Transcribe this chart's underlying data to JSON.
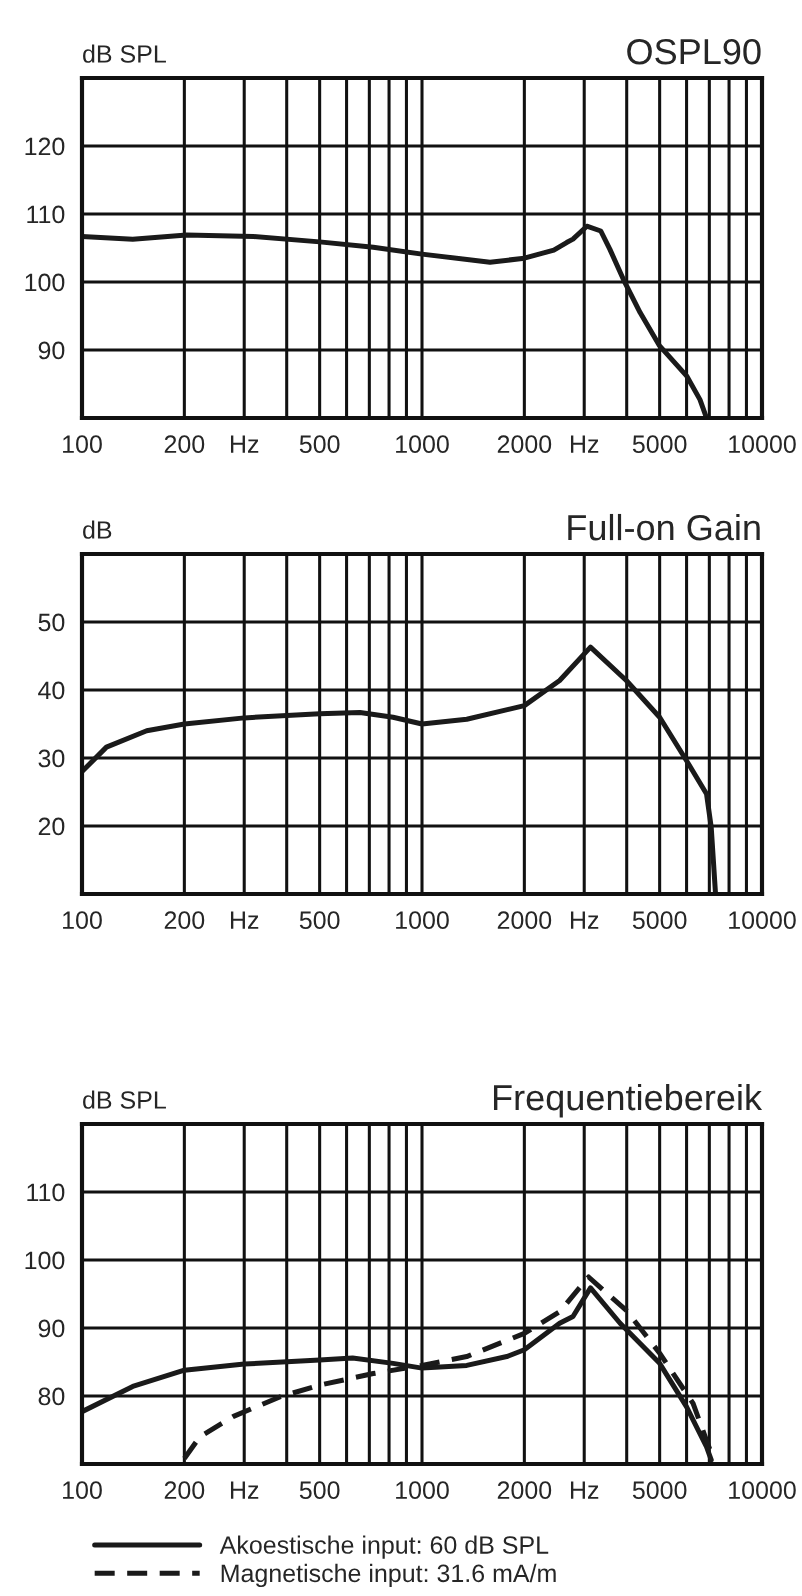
{
  "chart_data": [
    {
      "type": "line",
      "title": "OSPL90",
      "ylabel": "dB SPL",
      "log": "x",
      "grid": true,
      "xlim": [
        100,
        10000
      ],
      "ylim": [
        80,
        130
      ],
      "xticks": [
        100,
        200,
        {
          "value": 300,
          "label": "Hz"
        },
        {
          "value": 400,
          "label": null
        },
        500,
        {
          "value": 600,
          "label": null
        },
        {
          "value": 700,
          "label": null
        },
        {
          "value": 800,
          "label": null
        },
        {
          "value": 900,
          "label": null
        },
        1000,
        2000,
        {
          "value": 3000,
          "label": "Hz"
        },
        {
          "value": 4000,
          "label": null
        },
        5000,
        {
          "value": 6000,
          "label": null
        },
        {
          "value": 7000,
          "label": null
        },
        {
          "value": 8000,
          "label": null
        },
        {
          "value": 9000,
          "label": null
        },
        10000
      ],
      "yticks": [
        90,
        100,
        110,
        120
      ],
      "series": [
        {
          "color": "#1a1a1a",
          "line_style": "solid",
          "x": [
            100,
            141,
            203,
            319,
            500,
            719,
            1000,
            1585,
            2000,
            2442,
            2663,
            2780,
            3054,
            3356,
            3570,
            3910,
            4380,
            5000,
            6000,
            6570,
            6870
          ],
          "values": [
            106.7,
            106.3,
            106.9,
            106.7,
            105.9,
            105.1,
            104.1,
            102.9,
            103.5,
            104.7,
            105.8,
            106.3,
            108.2,
            107.5,
            104.8,
            100.4,
            95.5,
            90.6,
            86.2,
            82.7,
            80.0
          ]
        }
      ]
    },
    {
      "type": "line",
      "title": "Full-on Gain",
      "ylabel": "dB",
      "log": "x",
      "grid": true,
      "xlim": [
        100,
        10000
      ],
      "ylim": [
        10,
        60
      ],
      "xticks": [
        100,
        200,
        {
          "value": 300,
          "label": "Hz"
        },
        {
          "value": 400,
          "label": null
        },
        500,
        {
          "value": 600,
          "label": null
        },
        {
          "value": 700,
          "label": null
        },
        {
          "value": 800,
          "label": null
        },
        {
          "value": 900,
          "label": null
        },
        1000,
        2000,
        {
          "value": 3000,
          "label": "Hz"
        },
        {
          "value": 4000,
          "label": null
        },
        5000,
        {
          "value": 6000,
          "label": null
        },
        {
          "value": 7000,
          "label": null
        },
        {
          "value": 8000,
          "label": null
        },
        {
          "value": 9000,
          "label": null
        },
        10000
      ],
      "yticks": [
        20,
        30,
        40,
        50
      ],
      "series": [
        {
          "color": "#1a1a1a",
          "line_style": "solid",
          "x": [
            100,
            118,
            155,
            200,
            300,
            500,
            657,
            822,
            1000,
            1354,
            2000,
            2540,
            3130,
            3990,
            5000,
            6000,
            6870,
            7090,
            7300
          ],
          "values": [
            28.0,
            31.6,
            34.0,
            35.0,
            35.9,
            36.5,
            36.7,
            36.0,
            35.0,
            35.7,
            37.7,
            41.4,
            46.3,
            41.4,
            36.0,
            29.6,
            24.7,
            19.8,
            10.0
          ]
        }
      ]
    },
    {
      "type": "line",
      "title": "Frequentiebereik",
      "ylabel": "dB SPL",
      "log": "x",
      "grid": true,
      "legend": "bottom",
      "xlim": [
        100,
        10000
      ],
      "ylim": [
        70,
        120
      ],
      "xticks": [
        100,
        200,
        {
          "value": 300,
          "label": "Hz"
        },
        {
          "value": 400,
          "label": null
        },
        500,
        {
          "value": 600,
          "label": null
        },
        {
          "value": 700,
          "label": null
        },
        {
          "value": 800,
          "label": null
        },
        {
          "value": 900,
          "label": null
        },
        1000,
        2000,
        {
          "value": 3000,
          "label": "Hz"
        },
        {
          "value": 4000,
          "label": null
        },
        5000,
        {
          "value": 6000,
          "label": null
        },
        {
          "value": 7000,
          "label": null
        },
        {
          "value": 8000,
          "label": null
        },
        {
          "value": 9000,
          "label": null
        },
        10000
      ],
      "yticks": [
        80,
        90,
        100,
        110
      ],
      "series": [
        {
          "name": "Akoestische input: 60 dB SPL",
          "color": "#1a1a1a",
          "line_style": "solid",
          "x": [
            100,
            141,
            200,
            300,
            500,
            625,
            822,
            1000,
            1354,
            1776,
            2000,
            2540,
            2780,
            3130,
            3825,
            5000,
            6000,
            6870,
            7090
          ],
          "values": [
            77.7,
            81.4,
            83.8,
            84.7,
            85.3,
            85.6,
            84.8,
            84.1,
            84.5,
            85.8,
            86.8,
            90.7,
            91.7,
            95.9,
            90.7,
            84.8,
            78.4,
            72.5,
            70.6
          ]
        },
        {
          "name": "Magnetische input: 31.6 mA/m",
          "color": "#1a1a1a",
          "line_style": "dashed",
          "x": [
            200,
            222,
            279,
            383,
            500,
            719,
            1000,
            1354,
            2000,
            2540,
            3090,
            3990,
            5000,
            6270,
            7090
          ],
          "values": [
            70.8,
            74.0,
            77.0,
            79.9,
            81.6,
            83.3,
            84.5,
            85.8,
            89.2,
            92.4,
            97.5,
            92.6,
            86.3,
            78.9,
            71.6
          ]
        }
      ]
    }
  ]
}
